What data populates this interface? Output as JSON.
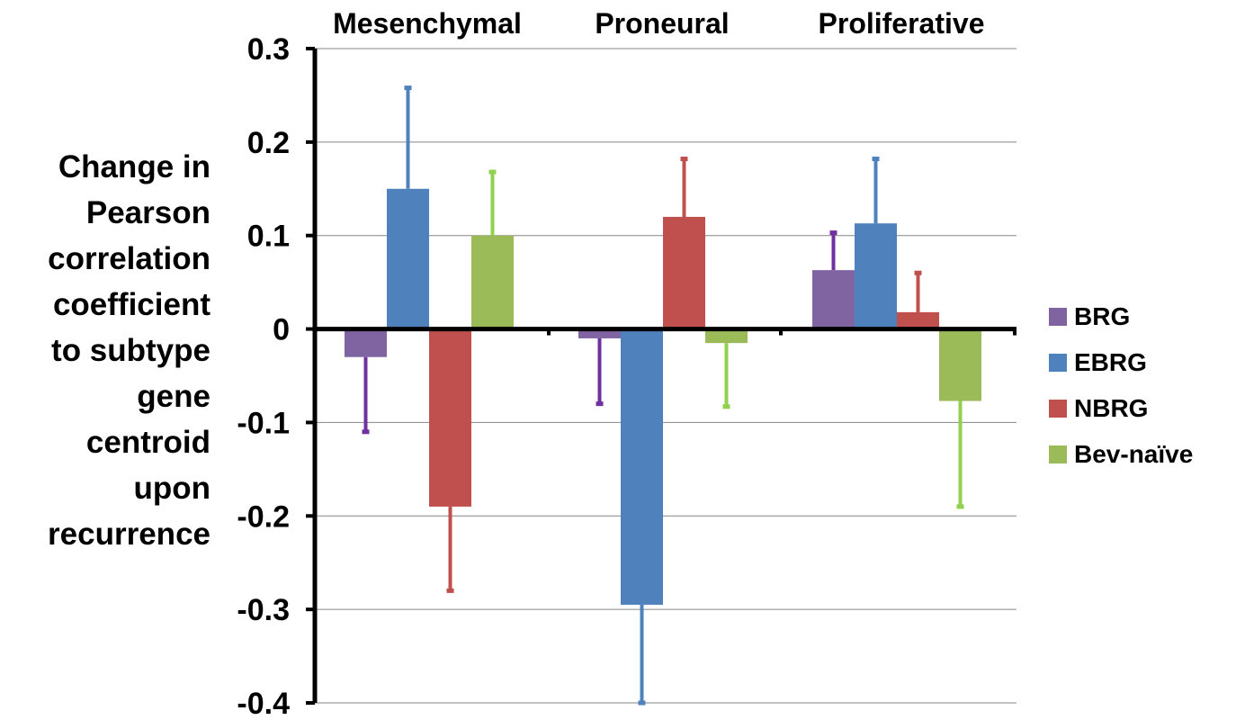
{
  "chart_data": {
    "type": "bar",
    "title": "",
    "xlabel": "",
    "ylabel_lines": [
      "Change in",
      "Pearson",
      "correlation",
      "coefficient",
      "to subtype",
      "gene",
      "centroid",
      "upon",
      "recurrence"
    ],
    "categories": [
      "Mesenchymal",
      "Proneural",
      "Proliferative"
    ],
    "ylim": [
      -0.4,
      0.3
    ],
    "yticks": [
      0.3,
      0.2,
      0.1,
      0,
      -0.1,
      -0.2,
      -0.3,
      -0.4
    ],
    "ytick_labels": [
      "0.3",
      "0.2",
      "0.1",
      "0",
      "-0.1",
      "-0.2",
      "-0.3",
      "-0.4"
    ],
    "grid": true,
    "legend_position": "right",
    "series": [
      {
        "name": "BRG",
        "color": "#8064a2",
        "err_color": "#7030a0",
        "values": [
          -0.03,
          -0.01,
          0.063
        ],
        "err_end": [
          -0.11,
          -0.08,
          0.103
        ]
      },
      {
        "name": "EBRG",
        "color": "#4f81bd",
        "err_color": "#4f81bd",
        "values": [
          0.15,
          -0.295,
          0.113
        ],
        "err_end": [
          0.258,
          -0.4,
          0.182
        ]
      },
      {
        "name": "NBRG",
        "color": "#c0504d",
        "err_color": "#c0504d",
        "values": [
          -0.19,
          0.12,
          0.018
        ],
        "err_end": [
          -0.28,
          0.182,
          0.06
        ]
      },
      {
        "name": "Bev-naïve",
        "color": "#9bbb59",
        "err_color": "#92d050",
        "values": [
          0.1,
          -0.015,
          -0.077
        ],
        "err_end": [
          0.168,
          -0.083,
          -0.19
        ]
      }
    ]
  }
}
